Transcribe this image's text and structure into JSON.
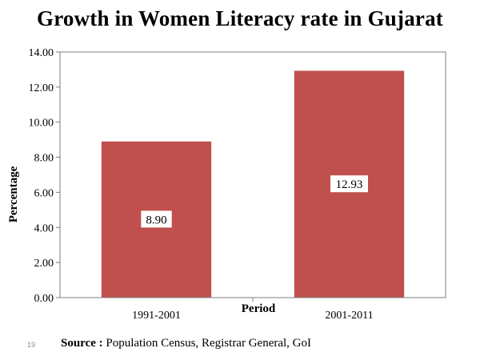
{
  "slide": {
    "title": "Growth in Women Literacy rate in Gujarat",
    "source_label": "Source :",
    "source_text": "Population Census, Registrar General, GoI",
    "slide_number": "19"
  },
  "colors": {
    "bar": "#c0504d",
    "plot_border": "#7f7f7f",
    "axis": "#7f7f7f"
  },
  "chart_data": {
    "type": "bar",
    "title": "Growth in Women Literacy rate in Gujarat",
    "categories": [
      "1991-2001",
      "2001-2011"
    ],
    "values": [
      8.9,
      12.93
    ],
    "data_labels": [
      "8.90",
      "12.93"
    ],
    "xlabel": "Period",
    "ylabel": "Percentage",
    "ylim": [
      0,
      14
    ],
    "yticks": [
      "0.00",
      "2.00",
      "4.00",
      "6.00",
      "8.00",
      "10.00",
      "12.00",
      "14.00"
    ],
    "grid": false,
    "legend": "none"
  }
}
